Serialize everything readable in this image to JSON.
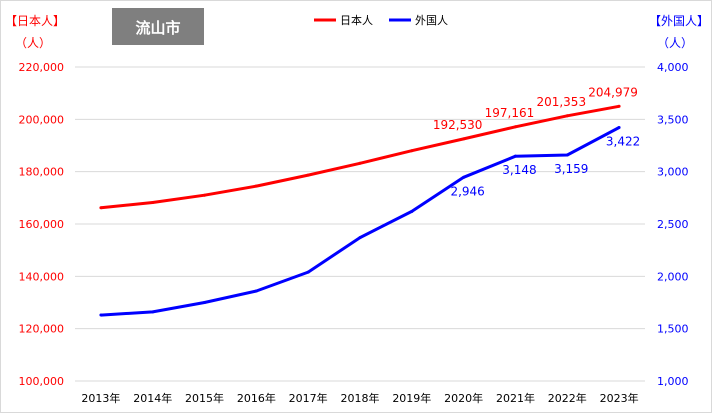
{
  "chart_data": {
    "type": "line",
    "title": "流山市",
    "left_axis_label_line1": "【日本人】",
    "left_axis_label_line2": "（人）",
    "right_axis_label_line1": "【外国人】",
    "right_axis_label_line2": "（人）",
    "categories": [
      "2013年",
      "2014年",
      "2015年",
      "2016年",
      "2017年",
      "2018年",
      "2019年",
      "2020年",
      "2021年",
      "2022年",
      "2023年"
    ],
    "y_left": {
      "min": 100000,
      "max": 220000,
      "ticks": [
        100000,
        120000,
        140000,
        160000,
        180000,
        200000,
        220000
      ],
      "tick_labels": [
        "100,000",
        "120,000",
        "140,000",
        "160,000",
        "180,000",
        "200,000",
        "220,000"
      ]
    },
    "y_right": {
      "min": 1000,
      "max": 4000,
      "ticks": [
        1000,
        1500,
        2000,
        2500,
        3000,
        3500,
        4000
      ],
      "tick_labels": [
        "1,000",
        "1,500",
        "2,000",
        "2,500",
        "3,000",
        "3,500",
        "4,000"
      ]
    },
    "grid": true,
    "legend_position": "top-center",
    "series": [
      {
        "name": "日本人",
        "axis": "left",
        "color": "#ff0000",
        "values": [
          166200,
          168200,
          171000,
          174500,
          178700,
          183200,
          188000,
          192530,
          197161,
          201353,
          204979
        ],
        "labels": [
          "",
          "",
          "",
          "",
          "",
          "",
          "",
          "192,530",
          "197,161",
          "201,353",
          "204,979"
        ]
      },
      {
        "name": "外国人",
        "axis": "right",
        "color": "#0000ff",
        "values": [
          1630,
          1660,
          1750,
          1860,
          2040,
          2370,
          2620,
          2946,
          3148,
          3159,
          3422
        ],
        "labels": [
          "",
          "",
          "",
          "",
          "",
          "",
          "",
          "2,946",
          "3,148",
          "3,159",
          "3,422"
        ]
      }
    ],
    "colors": {
      "left_axis": "#ff0000",
      "right_axis": "#0000ff",
      "title_box": "#7f7f7f",
      "grid": "#d9d9d9"
    }
  }
}
